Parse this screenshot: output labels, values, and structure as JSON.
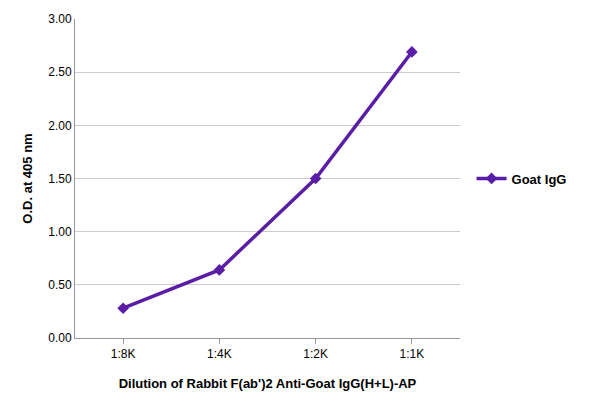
{
  "chart_data": {
    "type": "line",
    "x_label": "Dilution of Rabbit F(ab')2 Anti-Goat IgG(H+L)-AP",
    "y_label": "O.D. at 405 nm",
    "categories": [
      "1:8K",
      "1:4K",
      "1:2K",
      "1:1K"
    ],
    "series": [
      {
        "name": "Goat IgG",
        "color": "#5a1ea6",
        "values": [
          0.28,
          0.64,
          1.5,
          2.69
        ],
        "marker": "diamond",
        "line_style": "solid"
      }
    ],
    "ylim": [
      0,
      3
    ],
    "yticks": [
      {
        "value": 0,
        "label": "0.00"
      },
      {
        "value": 0.5,
        "label": "0.50"
      },
      {
        "value": 1,
        "label": "1.00"
      },
      {
        "value": 1.5,
        "label": "1.50"
      },
      {
        "value": 2,
        "label": "2.00"
      },
      {
        "value": 2.5,
        "label": "2.50"
      },
      {
        "value": 3,
        "label": "3.00"
      }
    ],
    "grid": true,
    "legend": "right"
  }
}
